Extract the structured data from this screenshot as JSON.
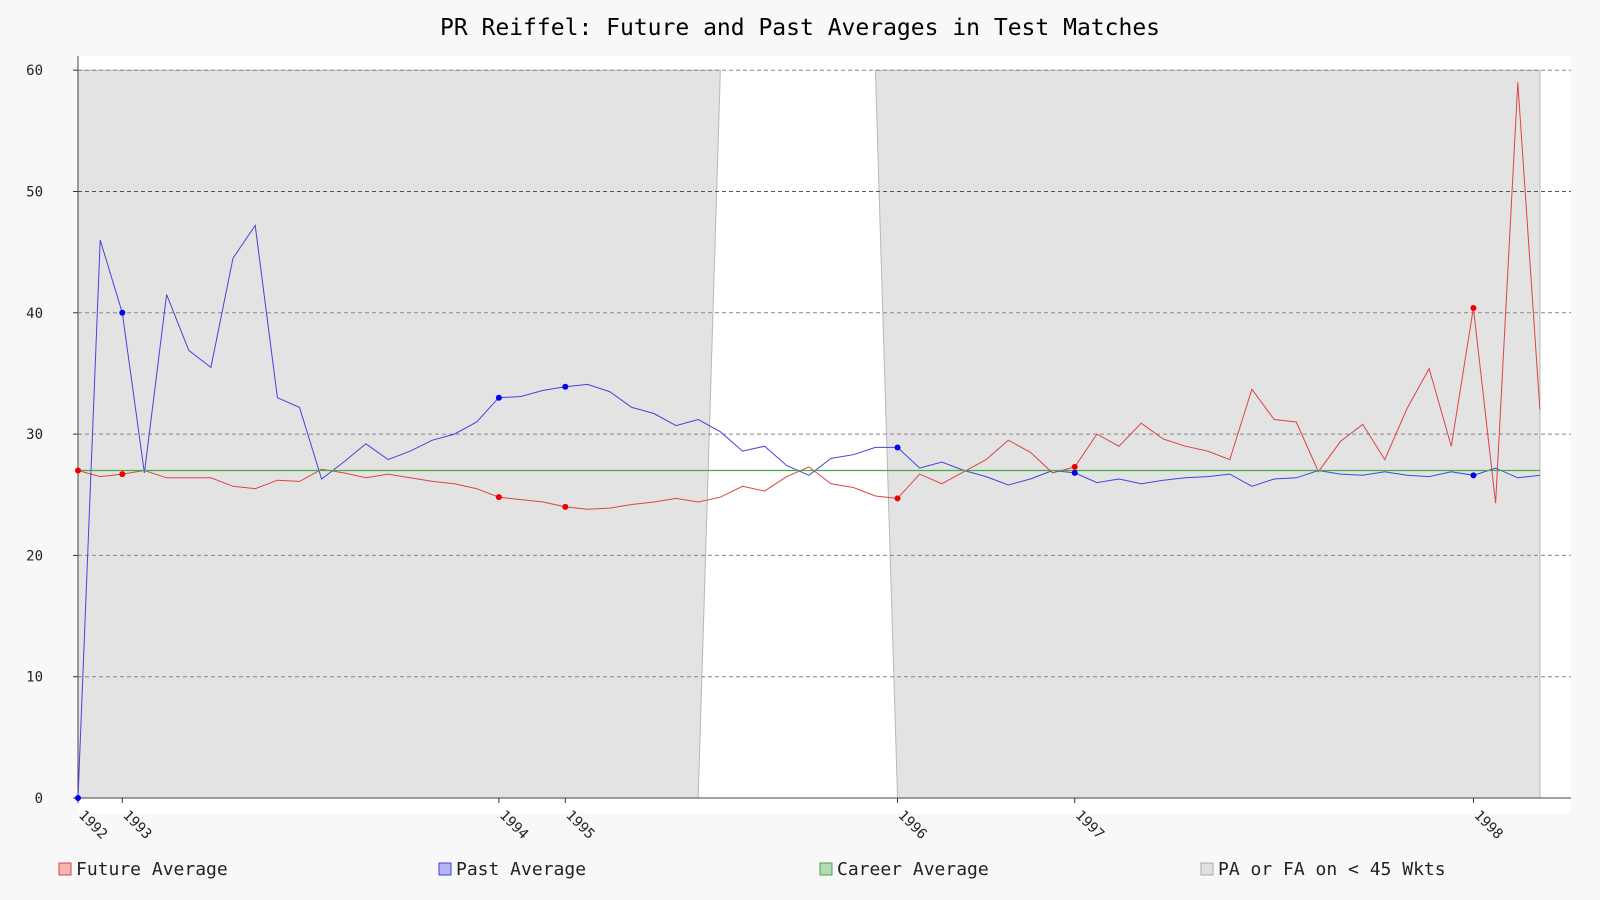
{
  "chart_data": {
    "type": "line",
    "title": "PR Reiffel: Future and Past Averages in Test Matches",
    "xlabel": "",
    "ylabel": "",
    "ylim": [
      0,
      60
    ],
    "yticks": [
      0,
      10,
      20,
      30,
      40,
      50,
      60
    ],
    "grid": true,
    "legend_placement": "bottom",
    "x_index_range": [
      0,
      66
    ],
    "x_tick_labels": [
      {
        "index": 0,
        "label": "1992"
      },
      {
        "index": 2,
        "label": "1993"
      },
      {
        "index": 19,
        "label": "1994"
      },
      {
        "index": 22,
        "label": "1995"
      },
      {
        "index": 37,
        "label": "1996"
      },
      {
        "index": 45,
        "label": "1997"
      },
      {
        "index": 63,
        "label": "1998"
      }
    ],
    "colors": {
      "future": "#dd4444",
      "past": "#4444dd",
      "career": "#44aa44",
      "shade": "#e3e3e3",
      "future_marker": "#ee0000",
      "past_marker": "#0000ee"
    },
    "series": [
      {
        "name": "Future Average",
        "key": "future",
        "values": [
          27.0,
          26.5,
          26.7,
          27.0,
          26.4,
          26.4,
          26.4,
          25.7,
          25.5,
          26.2,
          26.1,
          27.1,
          26.8,
          26.4,
          26.7,
          26.4,
          26.1,
          25.9,
          25.5,
          24.8,
          24.6,
          24.4,
          24.0,
          23.8,
          23.9,
          24.2,
          24.4,
          24.7,
          24.4,
          24.8,
          25.7,
          25.3,
          26.5,
          27.3,
          25.9,
          25.6,
          24.9,
          24.7,
          26.7,
          25.9,
          26.9,
          27.9,
          29.5,
          28.5,
          26.8,
          27.3,
          30.0,
          29.0,
          30.9,
          29.6,
          29.0,
          28.6,
          27.9,
          33.7,
          31.2,
          31.0,
          26.9,
          29.4,
          30.8,
          27.9,
          32.1,
          35.4,
          29.0,
          40.4,
          24.3,
          59.0,
          32.0
        ]
      },
      {
        "name": "Past Average",
        "key": "past",
        "values": [
          0,
          46.0,
          40.0,
          26.8,
          41.5,
          36.9,
          35.5,
          44.5,
          47.2,
          33.0,
          32.2,
          26.3,
          27.7,
          29.2,
          27.9,
          28.6,
          29.5,
          30.0,
          31.0,
          33.0,
          33.1,
          33.6,
          33.9,
          34.1,
          33.5,
          32.2,
          31.7,
          30.7,
          31.2,
          30.2,
          28.6,
          29.0,
          27.4,
          26.6,
          28.0,
          28.3,
          28.9,
          28.9,
          27.2,
          27.7,
          27.0,
          26.5,
          25.8,
          26.3,
          27.0,
          26.8,
          26.0,
          26.3,
          25.9,
          26.2,
          26.4,
          26.5,
          26.7,
          25.7,
          26.3,
          26.4,
          27.0,
          26.7,
          26.6,
          26.9,
          26.6,
          26.5,
          26.9,
          26.6,
          27.2,
          26.4,
          26.6
        ]
      },
      {
        "name": "Career Average",
        "key": "career",
        "value": 27.0
      }
    ],
    "markers": {
      "future": [
        0,
        2,
        19,
        22,
        37,
        45,
        63
      ],
      "past": [
        0,
        2,
        19,
        22,
        37,
        45,
        63
      ]
    },
    "shaded_region": {
      "name": "PA or FA on < 45 Wkts",
      "start": 0,
      "end": 66,
      "unshaded_top": [
        29,
        36
      ],
      "unshaded_bottom": [
        28,
        37
      ]
    },
    "legend": [
      "Future Average",
      "Past Average",
      "Career Average",
      "PA or FA on < 45 Wkts"
    ]
  }
}
